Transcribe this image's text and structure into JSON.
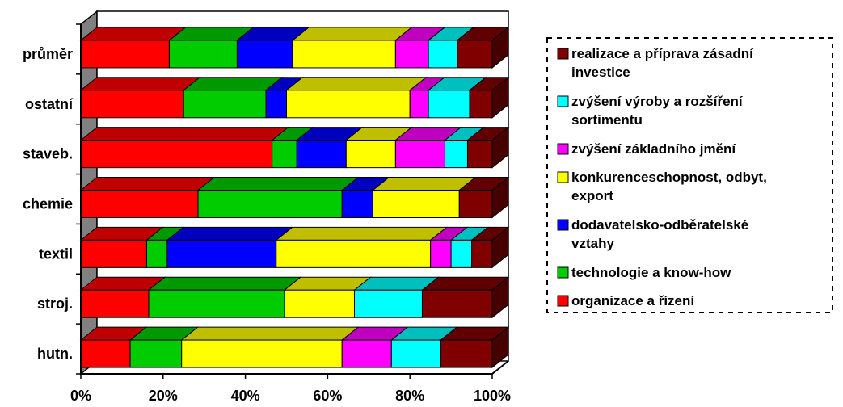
{
  "chart_data": {
    "type": "bar",
    "orientation": "horizontal",
    "stacked": "percent",
    "three_d": true,
    "categories": [
      "průměr",
      "ostatní",
      "staveb.",
      "chemie",
      "textil",
      "stroj.",
      "hutn."
    ],
    "x_ticks": [
      "0%",
      "20%",
      "40%",
      "60%",
      "80%",
      "100%"
    ],
    "xlim": [
      0,
      100
    ],
    "legend_position": "right",
    "series": [
      {
        "name": "organizace a řízení",
        "color": "#ff0000",
        "values": [
          21.5,
          25,
          46.5,
          28.5,
          16,
          16.5,
          12
        ]
      },
      {
        "name": "technologie a know-how",
        "color": "#00cc00",
        "values": [
          16.5,
          20,
          6,
          35,
          5,
          33,
          12.5
        ]
      },
      {
        "name": "dodavatelsko-odběratelské vztahy",
        "color": "#0000ff",
        "values": [
          13.5,
          5,
          12,
          7.5,
          26.5,
          0,
          0
        ]
      },
      {
        "name": "konkurenceschopnost, odbyt, export",
        "color": "#ffff00",
        "values": [
          25,
          30,
          12,
          21,
          37.5,
          17,
          39
        ]
      },
      {
        "name": "zvýšení  základního jmění",
        "color": "#ff00ff",
        "values": [
          8,
          4.5,
          12,
          0,
          5,
          0,
          12
        ]
      },
      {
        "name": "zvýšení výroby a rozšíření sortimentu",
        "color": "#00ffff",
        "values": [
          7,
          10,
          5.5,
          0,
          5,
          16.5,
          12
        ]
      },
      {
        "name": "realizace a příprava zásadní investice",
        "color": "#800000",
        "values": [
          8.5,
          5.5,
          6,
          8,
          5,
          17,
          12.5
        ]
      }
    ],
    "legend_lines": [
      {
        "text": "realizace a příprava zásadní",
        "cont": "investice",
        "color": "#800000"
      },
      {
        "text": "zvýšení výroby a rozšíření",
        "cont": "sortimentu",
        "color": "#00ffff"
      },
      {
        "text": "zvýšení  základního jmění",
        "cont": "",
        "color": "#ff00ff"
      },
      {
        "text": "konkurenceschopnost, odbyt,",
        "cont": "export",
        "color": "#ffff00"
      },
      {
        "text": "dodavatelsko-odběratelské",
        "cont": "vztahy",
        "color": "#0000ff"
      },
      {
        "text": "technologie a know-how",
        "cont": "",
        "color": "#00cc00"
      },
      {
        "text": "organizace a řízení",
        "cont": "",
        "color": "#ff0000"
      }
    ]
  }
}
